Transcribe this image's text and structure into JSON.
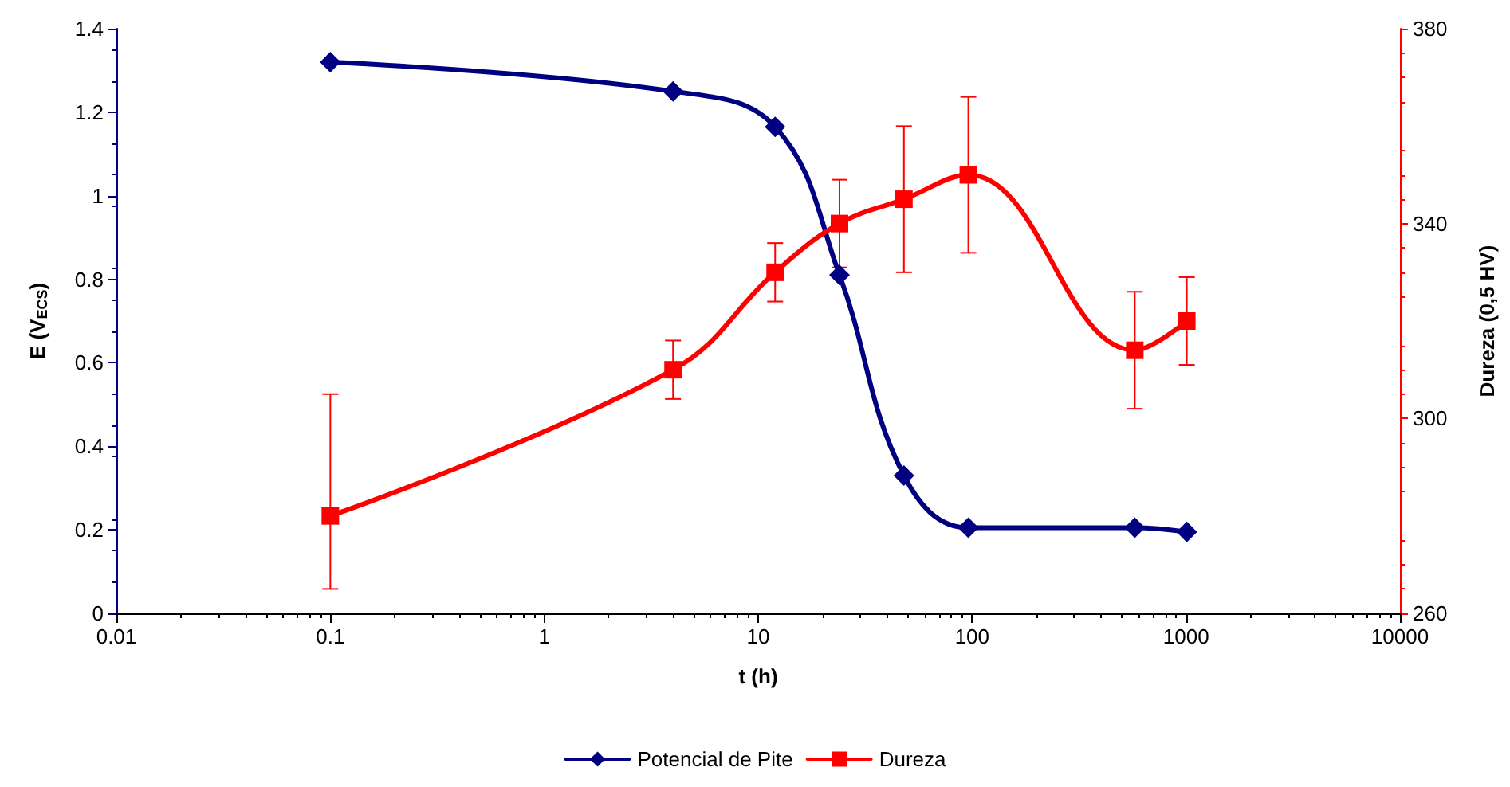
{
  "chart_data": {
    "type": "line",
    "xlabel": "t (h)",
    "ylabel": "E (V$_{ECS}$)",
    "y2label": "Dureza (0,5 HV)",
    "log": "x",
    "xlim": [
      0.01,
      10000
    ],
    "xticks": [
      0.01,
      0.1,
      1,
      10,
      100,
      1000,
      10000
    ],
    "ylim": [
      0,
      1.4
    ],
    "yticks": [
      0,
      0.2,
      0.4,
      0.6,
      0.8,
      1,
      1.2,
      1.4
    ],
    "y2lim": [
      260,
      380
    ],
    "y2ticks": [
      260,
      300,
      340,
      380
    ],
    "grid": false,
    "legend": "bottom",
    "line_style": "solid",
    "x": [
      0.1,
      4,
      12,
      24,
      48,
      96,
      576,
      1008
    ],
    "series": [
      {
        "name": "Potencial de Pite",
        "color": "#000080",
        "marker": "diamond",
        "values": [
          1.32,
          1.25,
          1.165,
          0.81,
          0.33,
          0.205,
          0.205,
          0.195
        ]
      },
      {
        "name": "Dureza",
        "color": "#ff0000",
        "marker": "square",
        "axis": "y2",
        "values": [
          280,
          310,
          330,
          340,
          345,
          350,
          314,
          320
        ],
        "errors": [
          [
            265,
            305
          ],
          [
            304,
            316
          ],
          [
            324,
            336
          ],
          [
            331,
            349
          ],
          [
            330,
            360
          ],
          [
            334,
            366
          ],
          [
            302,
            326
          ],
          [
            311,
            329
          ]
        ]
      }
    ]
  }
}
